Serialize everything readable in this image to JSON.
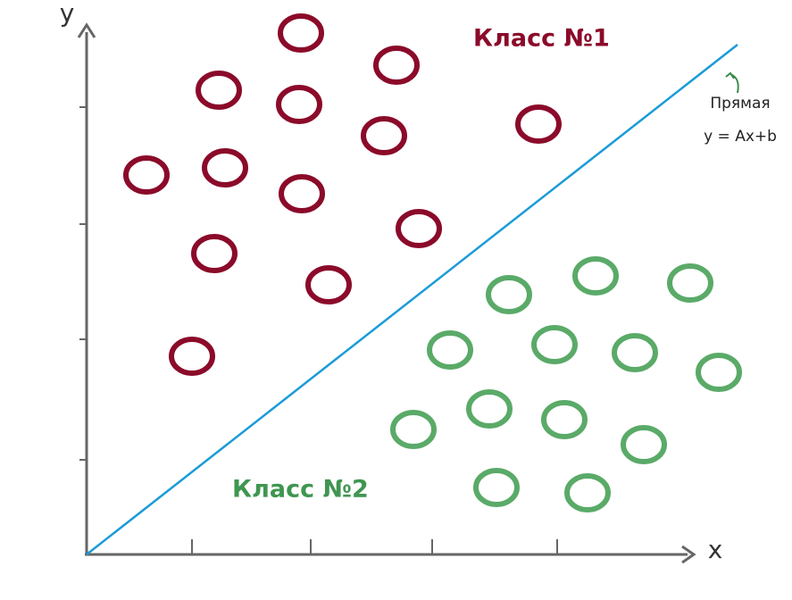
{
  "axes": {
    "x_label": "x",
    "y_label": "y"
  },
  "classes": [
    {
      "label": "Класс №1"
    },
    {
      "label": "Класс №2"
    }
  ],
  "line": {
    "label": "Прямая",
    "equation": "y = Ax+b"
  }
}
